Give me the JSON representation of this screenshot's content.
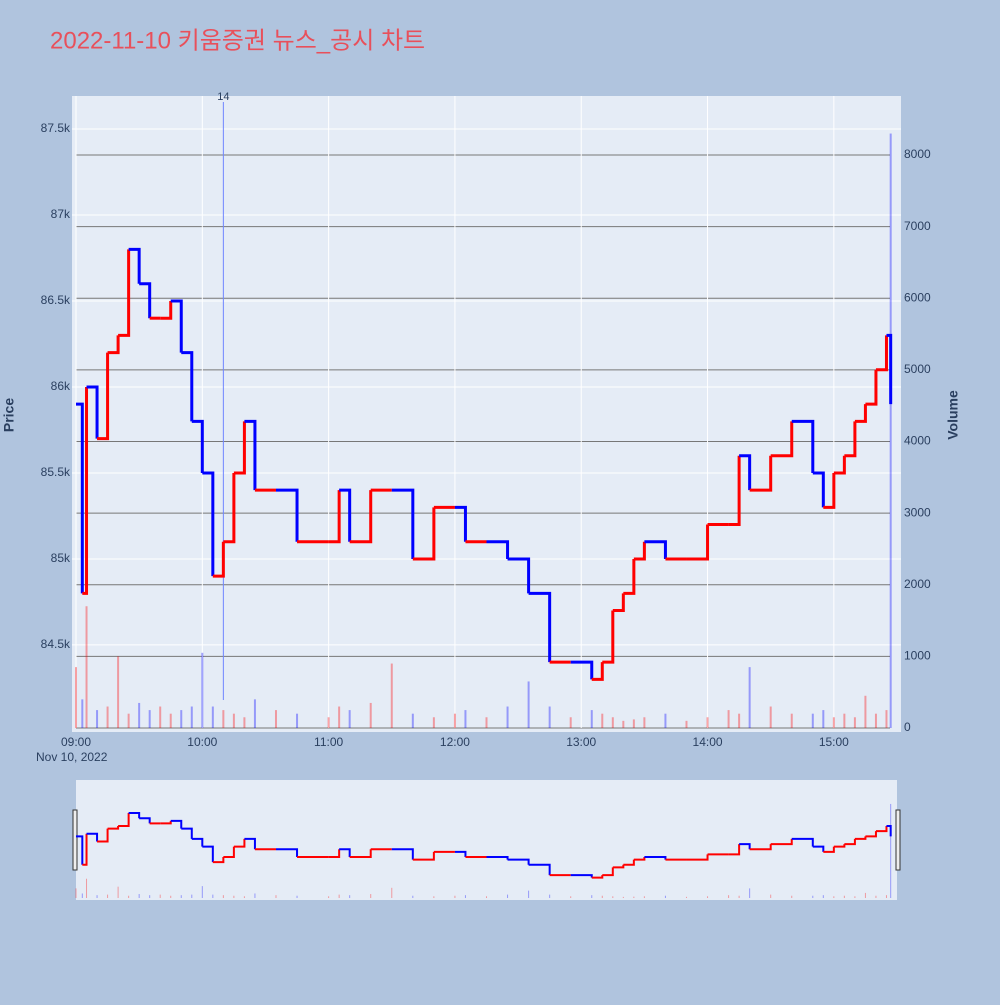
{
  "chart_data": {
    "type": "price-step",
    "title": "2022-11-10 키움증권 뉴스_공시 차트",
    "subtitle": "Nov 10, 2022",
    "y_label": "Price",
    "y2_label": "Volume",
    "annotation": {
      "x": "10:10",
      "text": "14"
    },
    "up_color": "#ff0000",
    "down_color": "#0000ff",
    "x": [
      "09:00",
      "09:03",
      "09:05",
      "09:10",
      "09:15",
      "09:20",
      "09:25",
      "09:30",
      "09:35",
      "09:40",
      "09:45",
      "09:50",
      "09:55",
      "10:00",
      "10:05",
      "10:10",
      "10:15",
      "10:20",
      "10:25",
      "10:35",
      "10:45",
      "11:00",
      "11:05",
      "11:10",
      "11:20",
      "11:30",
      "11:40",
      "11:50",
      "12:00",
      "12:05",
      "12:15",
      "12:25",
      "12:35",
      "12:45",
      "12:55",
      "13:05",
      "13:10",
      "13:15",
      "13:20",
      "13:25",
      "13:30",
      "13:40",
      "13:50",
      "14:00",
      "14:10",
      "14:15",
      "14:20",
      "14:30",
      "14:40",
      "14:50",
      "14:55",
      "15:00",
      "15:05",
      "15:10",
      "15:15",
      "15:20",
      "15:25",
      "15:27"
    ],
    "values": [
      85900,
      84800,
      86000,
      85700,
      86200,
      86300,
      86800,
      86600,
      86400,
      86400,
      86500,
      86200,
      85800,
      85500,
      84900,
      85100,
      85500,
      85800,
      85400,
      85400,
      85100,
      85100,
      85400,
      85100,
      85400,
      85400,
      85000,
      85300,
      85300,
      85100,
      85100,
      85000,
      84800,
      84400,
      84400,
      84300,
      84400,
      84700,
      84800,
      85000,
      85100,
      85000,
      85000,
      85200,
      85200,
      85600,
      85400,
      85600,
      85800,
      85500,
      85300,
      85500,
      85600,
      85800,
      85900,
      86100,
      86300,
      85900
    ],
    "volume": [
      850,
      400,
      1700,
      250,
      300,
      1000,
      200,
      350,
      250,
      300,
      200,
      250,
      300,
      1050,
      300,
      250,
      200,
      150,
      400,
      250,
      200,
      150,
      300,
      250,
      350,
      900,
      200,
      150,
      200,
      250,
      150,
      300,
      650,
      300,
      150,
      250,
      200,
      150,
      100,
      120,
      150,
      200,
      100,
      150,
      250,
      200,
      850,
      300,
      200,
      200,
      250,
      150,
      200,
      150,
      450,
      200,
      250,
      8300
    ],
    "xlim": [
      "09:00",
      "15:30"
    ],
    "xticks": [
      "09:00",
      "10:00",
      "11:00",
      "12:00",
      "13:00",
      "14:00",
      "15:00"
    ],
    "ylim": [
      84017,
      87692
    ],
    "yticks": [
      {
        "value": 84500,
        "label": "84.5k"
      },
      {
        "value": 85000,
        "label": "85k"
      },
      {
        "value": 85500,
        "label": "85.5k"
      },
      {
        "value": 86000,
        "label": "86k"
      },
      {
        "value": 86500,
        "label": "86.5k"
      },
      {
        "value": 87000,
        "label": "87k"
      },
      {
        "value": 87500,
        "label": "87.5k"
      }
    ],
    "y2lim": [
      0,
      8824
    ],
    "y2ticks": [
      0,
      1000,
      2000,
      3000,
      4000,
      5000,
      6000,
      7000,
      8000
    ]
  }
}
